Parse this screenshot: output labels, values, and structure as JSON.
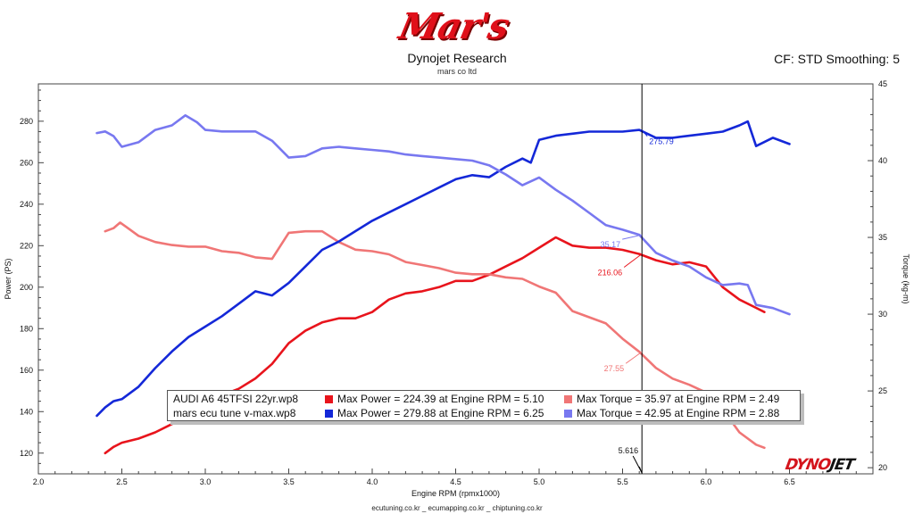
{
  "header": {
    "logo_text": "Mar's",
    "title": "Dynojet Research",
    "subtitle": "mars co ltd",
    "settings": "CF: STD Smoothing: 5"
  },
  "footer": {
    "text": "ecutuning.co.kr _ ecumapping.co.kr _ chiptuning.co.kr"
  },
  "brand": {
    "dyno": "DYNO",
    "jet": "JET"
  },
  "colors": {
    "run1_power": "#e8141c",
    "run1_torque": "#f07676",
    "run2_power": "#1428d8",
    "run2_torque": "#7878f0",
    "cursor": "#000000"
  },
  "legend": {
    "rows": [
      {
        "file": "AUDI A6 45TFSI 22yr.wp8",
        "power_text": "Max Power = 224.39 at Engine RPM = 5.10",
        "torque_text": "Max Torque = 35.97 at Engine RPM = 2.49",
        "power_color": "#e8141c",
        "torque_color": "#f07676"
      },
      {
        "file": "mars ecu tune v-max.wp8",
        "power_text": "Max Power = 279.88 at Engine RPM = 6.25",
        "torque_text": "Max Torque = 42.95 at Engine RPM = 2.88",
        "power_color": "#1428d8",
        "torque_color": "#7878f0"
      }
    ]
  },
  "chart_data": {
    "type": "line",
    "xlabel": "Engine RPM (rpmx1000)",
    "ylabel": "Power (PS)",
    "y2label": "Torque (kg-m)",
    "xlim": [
      2.0,
      7.0
    ],
    "ylim": [
      110,
      298
    ],
    "y2lim": [
      19.6,
      45
    ],
    "xticks": [
      2.0,
      2.5,
      3.0,
      3.5,
      4.0,
      4.5,
      5.0,
      5.5,
      6.0,
      6.5
    ],
    "yticks": [
      120,
      140,
      160,
      180,
      200,
      220,
      240,
      260,
      280
    ],
    "y2ticks": [
      20,
      25,
      30,
      35,
      40,
      45
    ],
    "grid": false,
    "cursor": {
      "x": 5.616,
      "label": "5.616"
    },
    "annotations": [
      {
        "text": "275.79",
        "x": 5.616,
        "y": 275.79,
        "axis": "power",
        "color": "#1428d8"
      },
      {
        "text": "35.17",
        "x": 5.616,
        "y": 35.17,
        "axis": "torque",
        "color": "#7878f0"
      },
      {
        "text": "216.06",
        "x": 5.616,
        "y": 216.06,
        "axis": "power",
        "color": "#e8141c"
      },
      {
        "text": "27.55",
        "x": 5.616,
        "y": 27.55,
        "axis": "torque",
        "color": "#f07676"
      }
    ],
    "series": [
      {
        "name": "AUDI A6 45TFSI 22yr.wp8",
        "metric": "Power",
        "axis": "power",
        "color": "#e8141c",
        "x": [
          2.4,
          2.45,
          2.5,
          2.6,
          2.7,
          2.8,
          2.9,
          3.0,
          3.1,
          3.2,
          3.3,
          3.4,
          3.5,
          3.6,
          3.7,
          3.8,
          3.9,
          4.0,
          4.1,
          4.2,
          4.3,
          4.4,
          4.5,
          4.6,
          4.7,
          4.8,
          4.9,
          5.0,
          5.1,
          5.2,
          5.3,
          5.4,
          5.5,
          5.6,
          5.7,
          5.8,
          5.9,
          6.0,
          6.1,
          6.2,
          6.3,
          6.35
        ],
        "values": [
          120,
          123,
          125,
          127,
          130,
          134,
          138,
          143,
          148,
          151,
          156,
          163,
          173,
          179,
          183,
          185,
          185,
          188,
          194,
          197,
          198,
          200,
          203,
          203,
          206,
          210,
          214,
          219,
          224,
          220,
          219,
          219,
          218,
          216,
          213,
          211,
          212,
          210,
          200,
          194,
          190,
          188
        ]
      },
      {
        "name": "AUDI A6 45TFSI 22yr.wp8",
        "metric": "Torque",
        "axis": "torque",
        "color": "#f07676",
        "x": [
          2.4,
          2.45,
          2.49,
          2.55,
          2.6,
          2.7,
          2.8,
          2.9,
          3.0,
          3.1,
          3.2,
          3.3,
          3.4,
          3.5,
          3.6,
          3.7,
          3.8,
          3.9,
          4.0,
          4.1,
          4.2,
          4.3,
          4.4,
          4.5,
          4.6,
          4.7,
          4.8,
          4.9,
          5.0,
          5.1,
          5.2,
          5.3,
          5.4,
          5.5,
          5.6,
          5.7,
          5.8,
          5.9,
          6.0,
          6.1,
          6.2,
          6.3,
          6.35
        ],
        "values": [
          35.4,
          35.6,
          35.97,
          35.5,
          35.1,
          34.7,
          34.5,
          34.4,
          34.4,
          34.1,
          34.0,
          33.7,
          33.6,
          35.3,
          35.4,
          35.4,
          34.7,
          34.2,
          34.1,
          33.9,
          33.4,
          33.2,
          33.0,
          32.7,
          32.6,
          32.6,
          32.4,
          32.3,
          31.8,
          31.4,
          30.2,
          29.8,
          29.4,
          28.4,
          27.55,
          26.5,
          25.8,
          25.4,
          24.9,
          23.8,
          22.3,
          21.5,
          21.3
        ]
      },
      {
        "name": "mars ecu tune v-max.wp8",
        "metric": "Power",
        "axis": "power",
        "color": "#1428d8",
        "x": [
          2.35,
          2.4,
          2.45,
          2.5,
          2.6,
          2.7,
          2.8,
          2.9,
          3.0,
          3.1,
          3.2,
          3.3,
          3.4,
          3.5,
          3.6,
          3.7,
          3.8,
          3.9,
          4.0,
          4.1,
          4.2,
          4.3,
          4.4,
          4.5,
          4.6,
          4.7,
          4.8,
          4.9,
          4.95,
          5.0,
          5.1,
          5.2,
          5.3,
          5.4,
          5.5,
          5.6,
          5.7,
          5.8,
          5.9,
          6.0,
          6.1,
          6.2,
          6.25,
          6.3,
          6.4,
          6.5
        ],
        "values": [
          138,
          142,
          145,
          146,
          152,
          161,
          169,
          176,
          181,
          186,
          192,
          198,
          196,
          202,
          210,
          218,
          222,
          227,
          232,
          236,
          240,
          244,
          248,
          252,
          254,
          253,
          258,
          262,
          260,
          271,
          273,
          274,
          275,
          275,
          275,
          275.79,
          272,
          272,
          273,
          274,
          275,
          278,
          279.88,
          268,
          272,
          269
        ]
      },
      {
        "name": "mars ecu tune v-max.wp8",
        "metric": "Torque",
        "axis": "torque",
        "color": "#7878f0",
        "x": [
          2.35,
          2.4,
          2.45,
          2.5,
          2.6,
          2.7,
          2.8,
          2.88,
          2.95,
          3.0,
          3.1,
          3.2,
          3.3,
          3.4,
          3.5,
          3.6,
          3.7,
          3.8,
          3.9,
          4.0,
          4.1,
          4.2,
          4.3,
          4.4,
          4.5,
          4.6,
          4.7,
          4.8,
          4.9,
          5.0,
          5.1,
          5.2,
          5.3,
          5.4,
          5.5,
          5.6,
          5.7,
          5.8,
          5.9,
          6.0,
          6.1,
          6.2,
          6.25,
          6.3,
          6.4,
          6.5
        ],
        "values": [
          41.8,
          41.9,
          41.6,
          40.9,
          41.2,
          42.0,
          42.3,
          42.95,
          42.5,
          42.0,
          41.9,
          41.9,
          41.9,
          41.3,
          40.2,
          40.3,
          40.8,
          40.9,
          40.8,
          40.7,
          40.6,
          40.4,
          40.3,
          40.2,
          40.1,
          40.0,
          39.7,
          39.1,
          38.4,
          38.9,
          38.1,
          37.4,
          36.6,
          35.8,
          35.5,
          35.17,
          34.0,
          33.5,
          33.1,
          32.4,
          31.9,
          32.0,
          31.9,
          30.6,
          30.4,
          30.0
        ]
      }
    ]
  }
}
